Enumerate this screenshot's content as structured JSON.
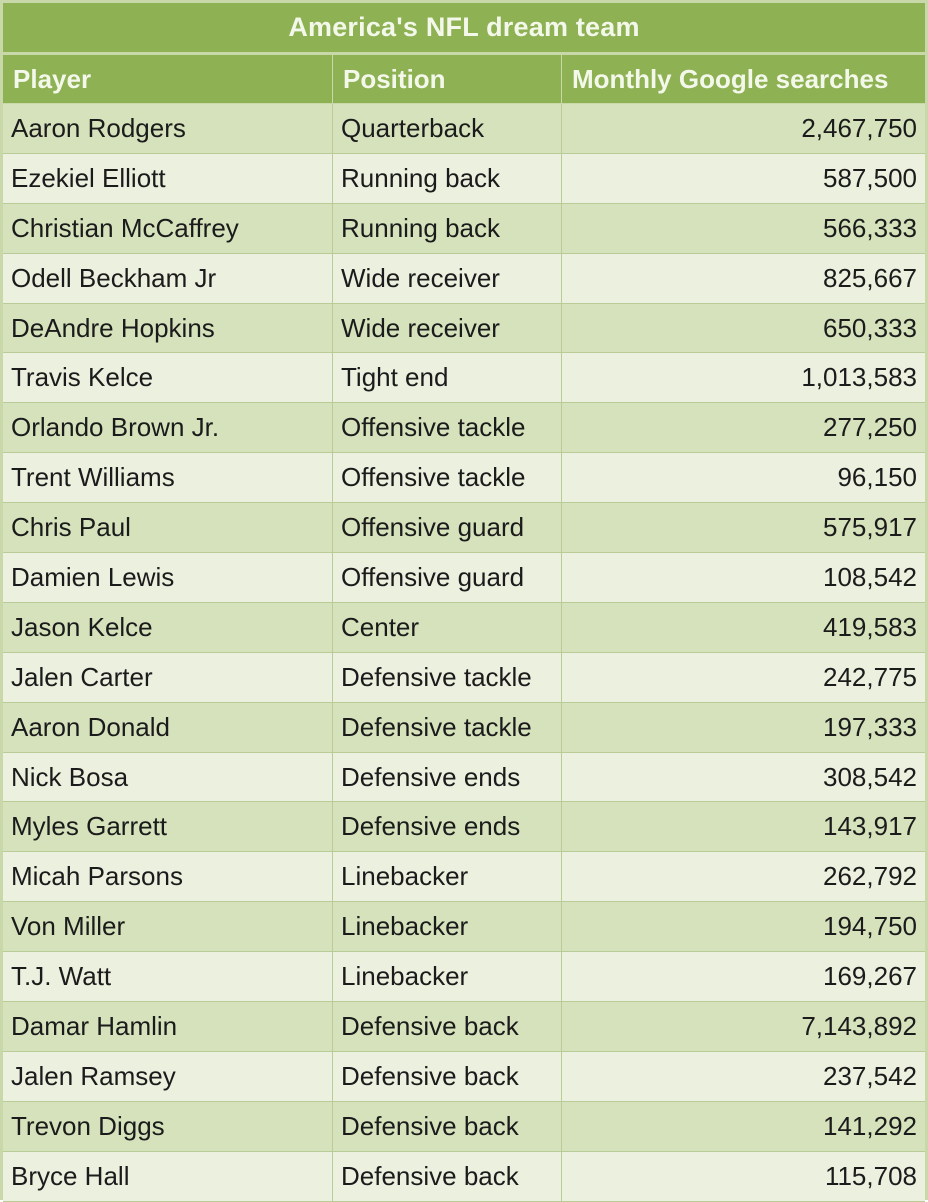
{
  "table": {
    "title": "America's NFL dream team",
    "headers": [
      "Player",
      "Position",
      "Monthly Google searches"
    ],
    "rows": [
      {
        "player": "Aaron Rodgers",
        "position": "Quarterback",
        "searches": "2,467,750"
      },
      {
        "player": "Ezekiel Elliott",
        "position": "Running back",
        "searches": "587,500"
      },
      {
        "player": "Christian McCaffrey",
        "position": "Running back",
        "searches": "566,333"
      },
      {
        "player": "Odell Beckham Jr",
        "position": "Wide receiver",
        "searches": "825,667"
      },
      {
        "player": "DeAndre Hopkins",
        "position": "Wide receiver",
        "searches": "650,333"
      },
      {
        "player": "Travis Kelce",
        "position": "Tight end",
        "searches": "1,013,583"
      },
      {
        "player": "Orlando Brown Jr.",
        "position": "Offensive tackle",
        "searches": "277,250"
      },
      {
        "player": "Trent Williams",
        "position": "Offensive tackle",
        "searches": "96,150"
      },
      {
        "player": "Chris Paul",
        "position": "Offensive guard",
        "searches": "575,917"
      },
      {
        "player": "Damien Lewis",
        "position": "Offensive guard",
        "searches": "108,542"
      },
      {
        "player": "Jason Kelce",
        "position": "Center",
        "searches": "419,583"
      },
      {
        "player": "Jalen Carter",
        "position": "Defensive tackle",
        "searches": "242,775"
      },
      {
        "player": "Aaron Donald",
        "position": "Defensive tackle",
        "searches": "197,333"
      },
      {
        "player": "Nick Bosa",
        "position": "Defensive ends",
        "searches": "308,542"
      },
      {
        "player": "Myles Garrett",
        "position": "Defensive ends",
        "searches": "143,917"
      },
      {
        "player": "Micah Parsons",
        "position": "Linebacker",
        "searches": "262,792"
      },
      {
        "player": "Von Miller",
        "position": "Linebacker",
        "searches": "194,750"
      },
      {
        "player": "T.J. Watt",
        "position": "Linebacker",
        "searches": "169,267"
      },
      {
        "player": "Damar Hamlin",
        "position": "Defensive back",
        "searches": "7,143,892"
      },
      {
        "player": "Jalen Ramsey",
        "position": "Defensive back",
        "searches": "237,542"
      },
      {
        "player": "Trevon Diggs",
        "position": "Defensive back",
        "searches": "141,292"
      },
      {
        "player": "Bryce Hall",
        "position": "Defensive back",
        "searches": "115,708"
      }
    ]
  },
  "colors": {
    "header_green": "#8db153",
    "row_dark": "#d5e2bc",
    "row_light": "#ebf0df",
    "header_text": "#f4f8ea"
  }
}
